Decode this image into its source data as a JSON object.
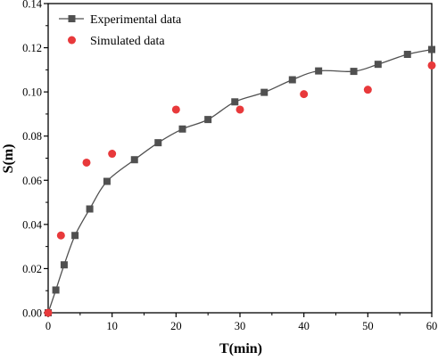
{
  "chart_data": {
    "type": "scatter",
    "xlabel": "T(min)",
    "ylabel": "S(m)",
    "xlim": [
      0,
      60
    ],
    "ylim": [
      0,
      0.14
    ],
    "x_ticks": [
      "0",
      "10",
      "20",
      "30",
      "40",
      "50",
      "60"
    ],
    "y_ticks": [
      "0.00",
      "0.02",
      "0.04",
      "0.06",
      "0.08",
      "0.10",
      "0.12",
      "0.14"
    ],
    "grid": false,
    "legend_position": "top-left",
    "series": [
      {
        "name": "Experimental data",
        "marker": "square",
        "line": "smooth",
        "color": "#505050",
        "x": [
          0,
          1.2,
          2.5,
          4.2,
          6.5,
          9.2,
          13.5,
          17.2,
          21,
          25,
          29.2,
          33.8,
          38.2,
          42.3,
          47.8,
          51.6,
          56.2,
          60
        ],
        "y": [
          0,
          0.0103,
          0.0217,
          0.035,
          0.047,
          0.0595,
          0.0693,
          0.077,
          0.0832,
          0.0875,
          0.0955,
          0.0998,
          0.1055,
          0.1095,
          0.1093,
          0.1125,
          0.117,
          0.1192
        ]
      },
      {
        "name": "Simulated data",
        "marker": "circle",
        "line": "none",
        "color": "#e8393b",
        "x": [
          0,
          2,
          6,
          10,
          20,
          30,
          40,
          50,
          60
        ],
        "y": [
          0,
          0.035,
          0.068,
          0.072,
          0.092,
          0.092,
          0.099,
          0.101,
          0.112
        ]
      }
    ]
  }
}
